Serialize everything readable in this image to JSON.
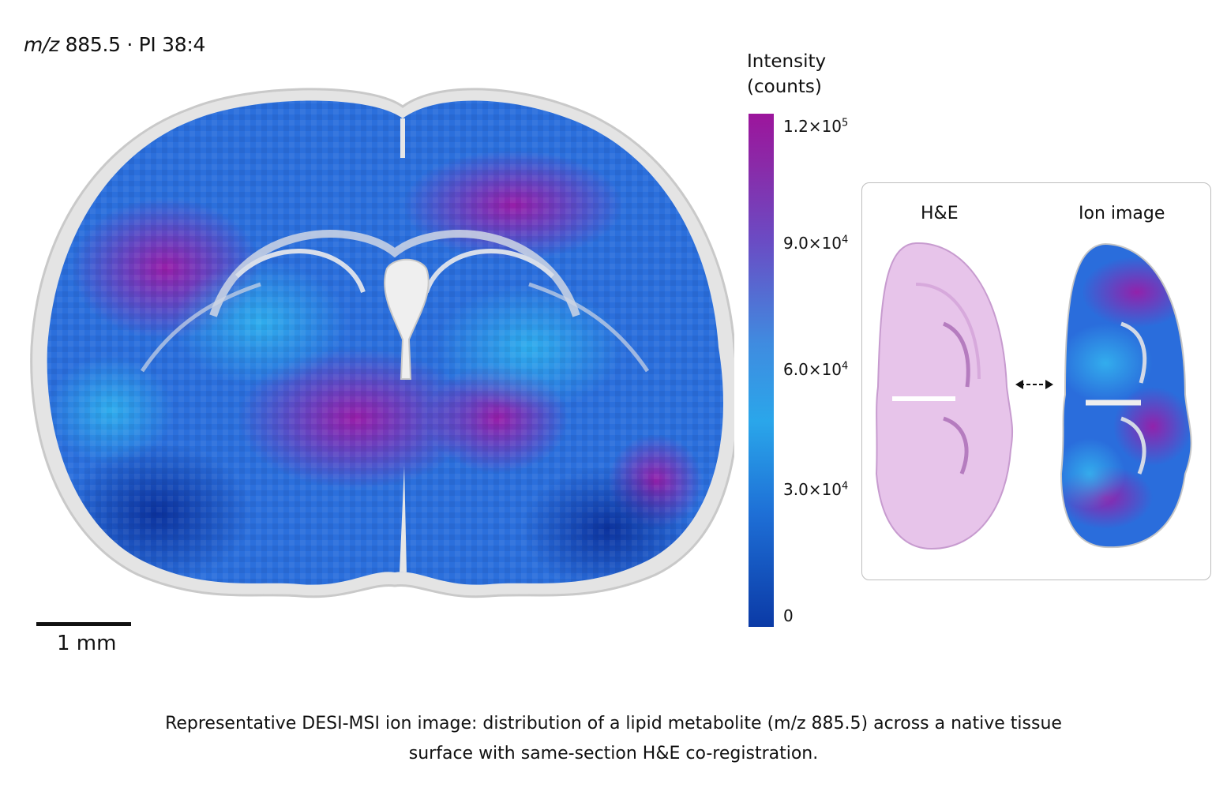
{
  "figure": {
    "title_prefix": "m/z",
    "title_rest": " 885.5 · PI 38:4",
    "scale_bar_label": "1 mm",
    "colorbar": {
      "title_line1": "Intensity",
      "title_line2": "(counts)",
      "ticks": [
        {
          "label": "1.2×10",
          "exp": "5",
          "value": 120000
        },
        {
          "label": "9.0×10",
          "exp": "4",
          "value": 90000
        },
        {
          "label": "6.0×10",
          "exp": "4",
          "value": 60000
        },
        {
          "label": "3.0×10",
          "exp": "4",
          "value": 30000
        },
        {
          "label": "0",
          "exp": "",
          "value": 0
        }
      ],
      "colors": [
        "#0b3aa6",
        "#1e6fd6",
        "#2aa6ea",
        "#6a4cc4",
        "#9c159c"
      ]
    },
    "inset": {
      "left_label": "H&E",
      "right_label": "Ion image"
    },
    "caption_line1": "Representative DESI-MSI ion image: distribution of a lipid metabolite (m/z 885.5) across a native tissue",
    "caption_line2": "surface with same-section H&E co-registration."
  }
}
